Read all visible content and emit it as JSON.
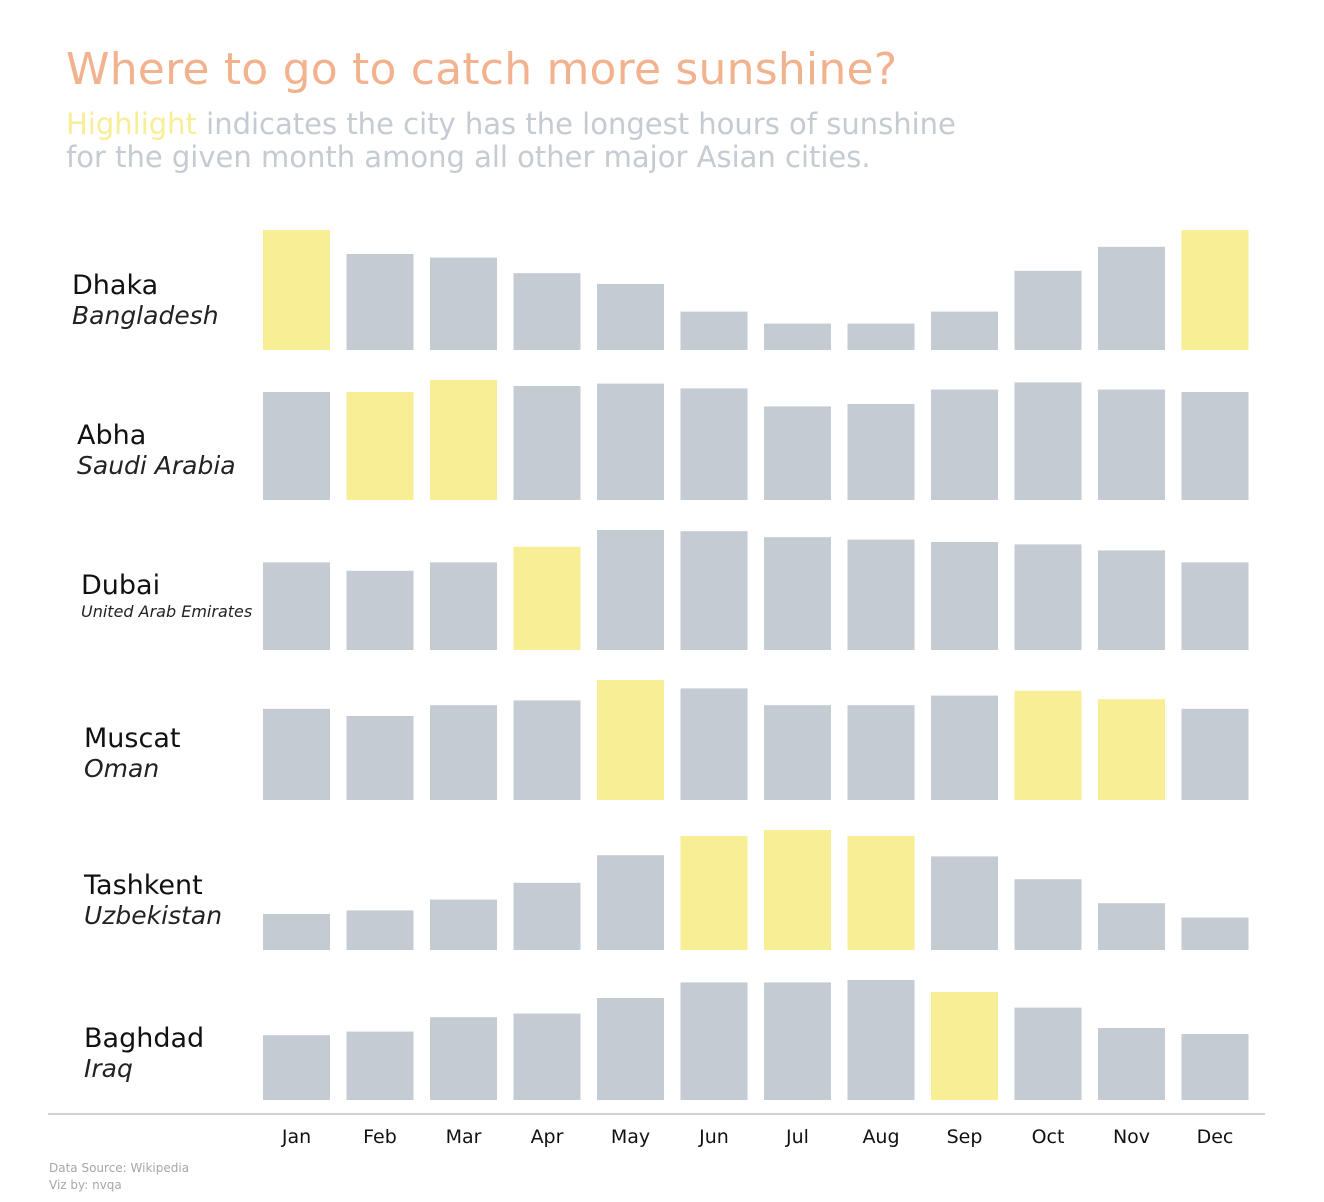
{
  "header": {
    "title": "Where to go to catch more sunshine?",
    "subtitle_highlight": "Highlight",
    "subtitle_line1_rest": " indicates the city has the longest hours of sunshine",
    "subtitle_line2": "for the given month among all other major Asian cities."
  },
  "footer": {
    "source": "Data Source: Wikipedia",
    "credit": "Viz by: nvqa"
  },
  "colors": {
    "bar": "#c4cbd2",
    "highlight": "#f7ee96",
    "title": "#f2b28e",
    "baseline": "#d0d0d0"
  },
  "chart_data": {
    "type": "bar",
    "layout": "small-multiples",
    "title": "Where to go to catch more sunshine?",
    "categories": [
      "Jan",
      "Feb",
      "Mar",
      "Apr",
      "May",
      "Jun",
      "Jul",
      "Aug",
      "Sep",
      "Oct",
      "Nov",
      "Dec"
    ],
    "series": [
      {
        "name": "Dhaka",
        "country": "Bangladesh",
        "values": [
          100,
          80,
          77,
          64,
          55,
          32,
          22,
          22,
          32,
          66,
          86,
          100
        ],
        "highlight": [
          "Jan",
          "Dec"
        ]
      },
      {
        "name": "Abha",
        "country": "Saudi Arabia",
        "values": [
          90,
          90,
          100,
          95,
          97,
          93,
          78,
          80,
          92,
          98,
          92,
          90
        ],
        "highlight": [
          "Feb",
          "Mar"
        ]
      },
      {
        "name": "Dubai",
        "country": "United Arab Emirates",
        "values": [
          73,
          66,
          73,
          86,
          100,
          99,
          94,
          92,
          90,
          88,
          83,
          73
        ],
        "highlight": [
          "Apr"
        ]
      },
      {
        "name": "Muscat",
        "country": "Oman",
        "values": [
          76,
          70,
          79,
          83,
          100,
          93,
          79,
          79,
          87,
          91,
          84,
          76
        ],
        "highlight": [
          "May",
          "Oct",
          "Nov"
        ]
      },
      {
        "name": "Tashkent",
        "country": "Uzbekistan",
        "values": [
          30,
          33,
          42,
          56,
          79,
          95,
          100,
          95,
          78,
          59,
          39,
          27
        ],
        "highlight": [
          "Jun",
          "Jul",
          "Aug"
        ]
      },
      {
        "name": "Baghdad",
        "country": "Iraq",
        "values": [
          54,
          57,
          69,
          72,
          85,
          98,
          98,
          100,
          90,
          77,
          60,
          55
        ],
        "highlight": [
          "Sep"
        ]
      }
    ],
    "grid": false,
    "legend": "none"
  }
}
